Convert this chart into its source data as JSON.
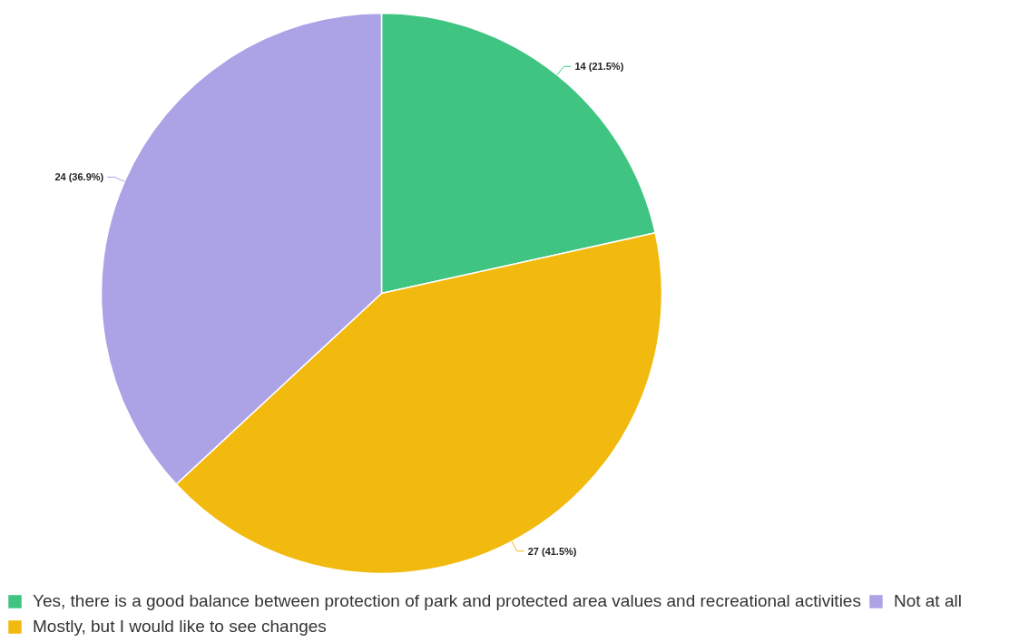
{
  "chart_data": {
    "type": "pie",
    "categories": [
      "Yes, there is a good balance between protection of park and protected area values and recreational activities",
      "Mostly, but I would like to see changes",
      "Not at all"
    ],
    "values": [
      14,
      27,
      24
    ],
    "colors": [
      "#40c482",
      "#f2b90f",
      "#aba3e6"
    ],
    "value_labels": [
      "14 (21.5%)",
      "27 (41.5%)",
      "24 (36.9%)"
    ],
    "legend": "bottom"
  }
}
